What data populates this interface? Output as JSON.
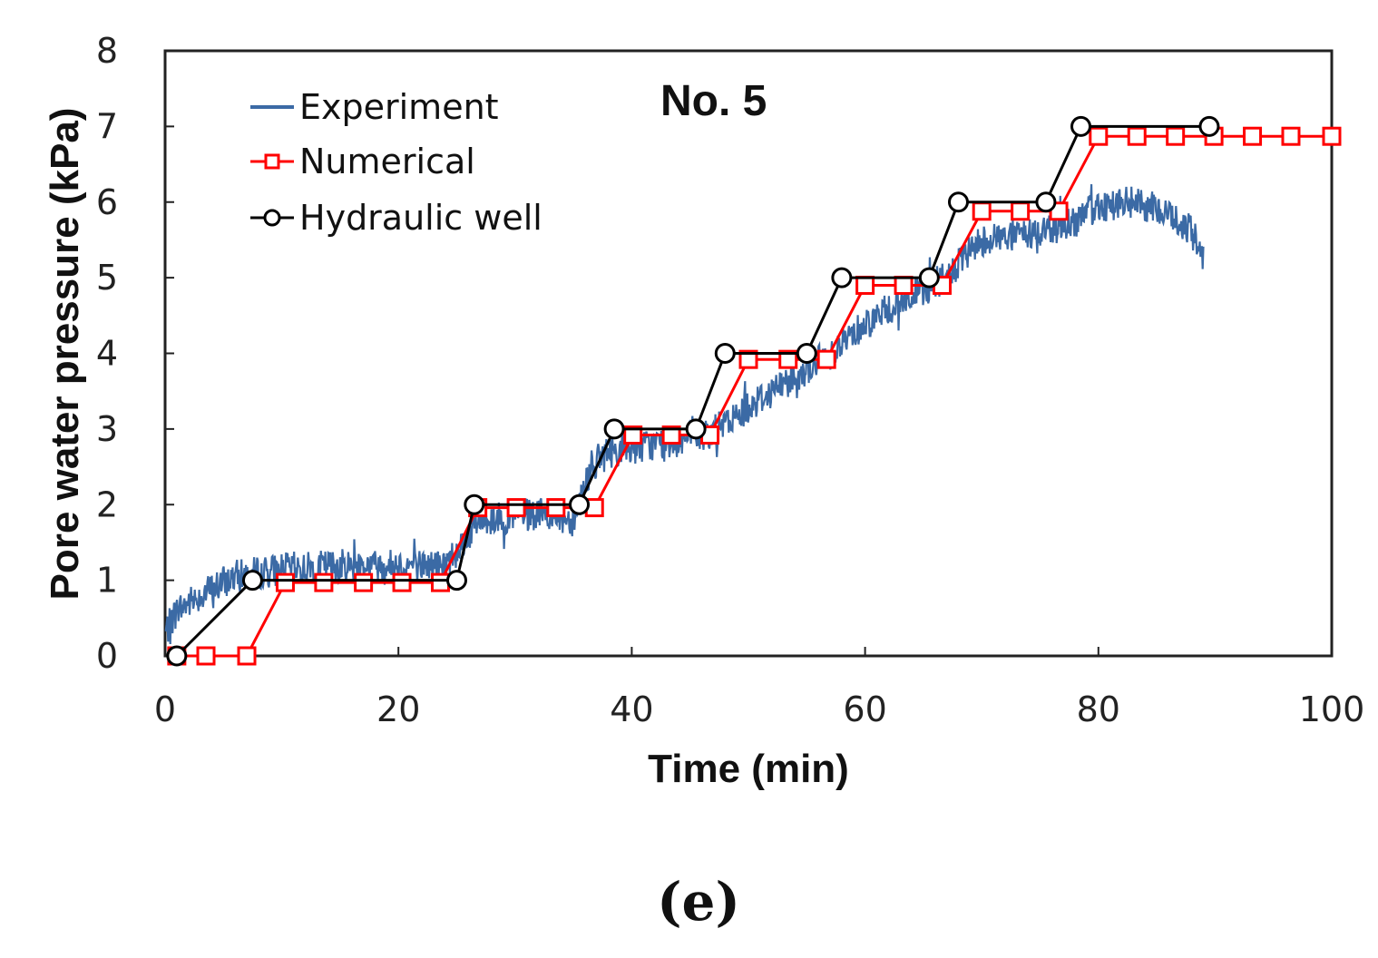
{
  "chart_data": {
    "type": "line",
    "title": "No. 5",
    "panel_label": "(e)",
    "xlabel": "Time (min)",
    "ylabel": "Pore water pressure (kPa)",
    "xlim": [
      0,
      100
    ],
    "ylim": [
      0,
      8
    ],
    "xticks": [
      "0",
      "20",
      "40",
      "60",
      "80",
      "100"
    ],
    "yticks": [
      "0",
      "1",
      "2",
      "3",
      "4",
      "5",
      "6",
      "7",
      "8"
    ],
    "legend_position": "top-left",
    "series": [
      {
        "name": "Experiment",
        "color": "#3b6aa5",
        "style": "noisy-line",
        "trend_x": [
          0,
          1,
          3,
          6,
          10,
          15,
          20,
          24,
          25.5,
          27,
          30,
          33,
          35,
          36.5,
          38,
          42,
          46,
          48,
          50,
          55,
          57,
          60,
          65,
          67,
          70,
          75,
          78,
          80,
          83,
          86,
          88,
          89
        ],
        "trend_y": [
          0.3,
          0.6,
          0.8,
          1.05,
          1.15,
          1.2,
          1.2,
          1.2,
          1.5,
          1.8,
          1.85,
          1.85,
          1.8,
          2.5,
          2.7,
          2.8,
          2.9,
          3.05,
          3.3,
          3.8,
          4.0,
          4.4,
          4.85,
          5.0,
          5.5,
          5.6,
          5.75,
          5.95,
          6.0,
          5.85,
          5.6,
          5.3
        ],
        "noise_amplitude": 0.22
      },
      {
        "name": "Numerical",
        "color": "#ff0000",
        "marker": "square",
        "x": [
          1,
          3.5,
          7,
          10.3,
          13.6,
          17,
          20.3,
          23.6,
          26.8,
          30.1,
          33.5,
          36.8,
          40.1,
          43.4,
          46.7,
          50,
          53.4,
          56.7,
          60,
          63.3,
          66.6,
          70,
          73.3,
          76.6,
          80,
          83.3,
          86.6,
          89.9,
          93.2,
          96.5,
          100
        ],
        "y": [
          0,
          0,
          0,
          0.97,
          0.97,
          0.97,
          0.97,
          0.97,
          1.96,
          1.96,
          1.96,
          1.96,
          2.92,
          2.92,
          2.92,
          3.92,
          3.92,
          3.92,
          4.9,
          4.9,
          4.9,
          5.88,
          5.88,
          5.88,
          6.87,
          6.87,
          6.87,
          6.87,
          6.87,
          6.87,
          6.87
        ]
      },
      {
        "name": "Hydraulic well",
        "color": "#000000",
        "marker": "circle",
        "x": [
          1,
          7.5,
          25,
          26.5,
          35.5,
          38.5,
          45.5,
          48,
          55,
          58,
          65.5,
          68,
          75.5,
          78.5,
          89.5
        ],
        "y": [
          0,
          1,
          1,
          2,
          2,
          3,
          3,
          4,
          4,
          5,
          5,
          6,
          6,
          7,
          7
        ]
      }
    ]
  }
}
